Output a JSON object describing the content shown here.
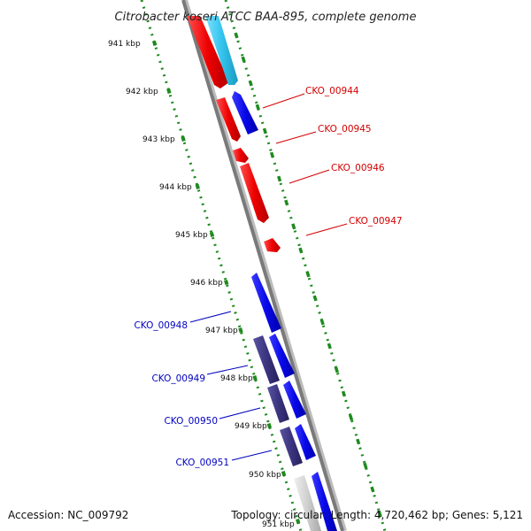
{
  "title": "Citrobacter koseri ATCC BAA-895, complete genome",
  "footer": {
    "accession": "Accession: NC_009792",
    "topology": "Topology: circular; Length: 4,720,462 bp; Genes: 5,121"
  },
  "colors": {
    "forward_gene": "#e8000b",
    "reverse_gene": "#1010e0",
    "reverse_gene_dark": "#3b3480",
    "forward_rna": "#33c4ee",
    "pseudo": "#c8c8c8",
    "backbone": "#808080",
    "scale": "#1f8a1f"
  },
  "scale_labels": [
    "941 kbp",
    "942 kbp",
    "943 kbp",
    "944 kbp",
    "945 kbp",
    "946 kbp",
    "947 kbp",
    "948 kbp",
    "949 kbp",
    "950 kbp",
    "951 kbp"
  ],
  "genes": {
    "right": [
      {
        "label": "CKO_00944",
        "color": "#d40000"
      },
      {
        "label": "CKO_00945",
        "color": "#d40000"
      },
      {
        "label": "CKO_00946",
        "color": "#d40000"
      },
      {
        "label": "CKO_00947",
        "color": "#d40000"
      }
    ],
    "left": [
      {
        "label": "CKO_00948",
        "color": "#0000c0"
      },
      {
        "label": "CKO_00949",
        "color": "#0000c0"
      },
      {
        "label": "CKO_00950",
        "color": "#0000c0"
      },
      {
        "label": "CKO_00951",
        "color": "#0000c0"
      }
    ]
  }
}
